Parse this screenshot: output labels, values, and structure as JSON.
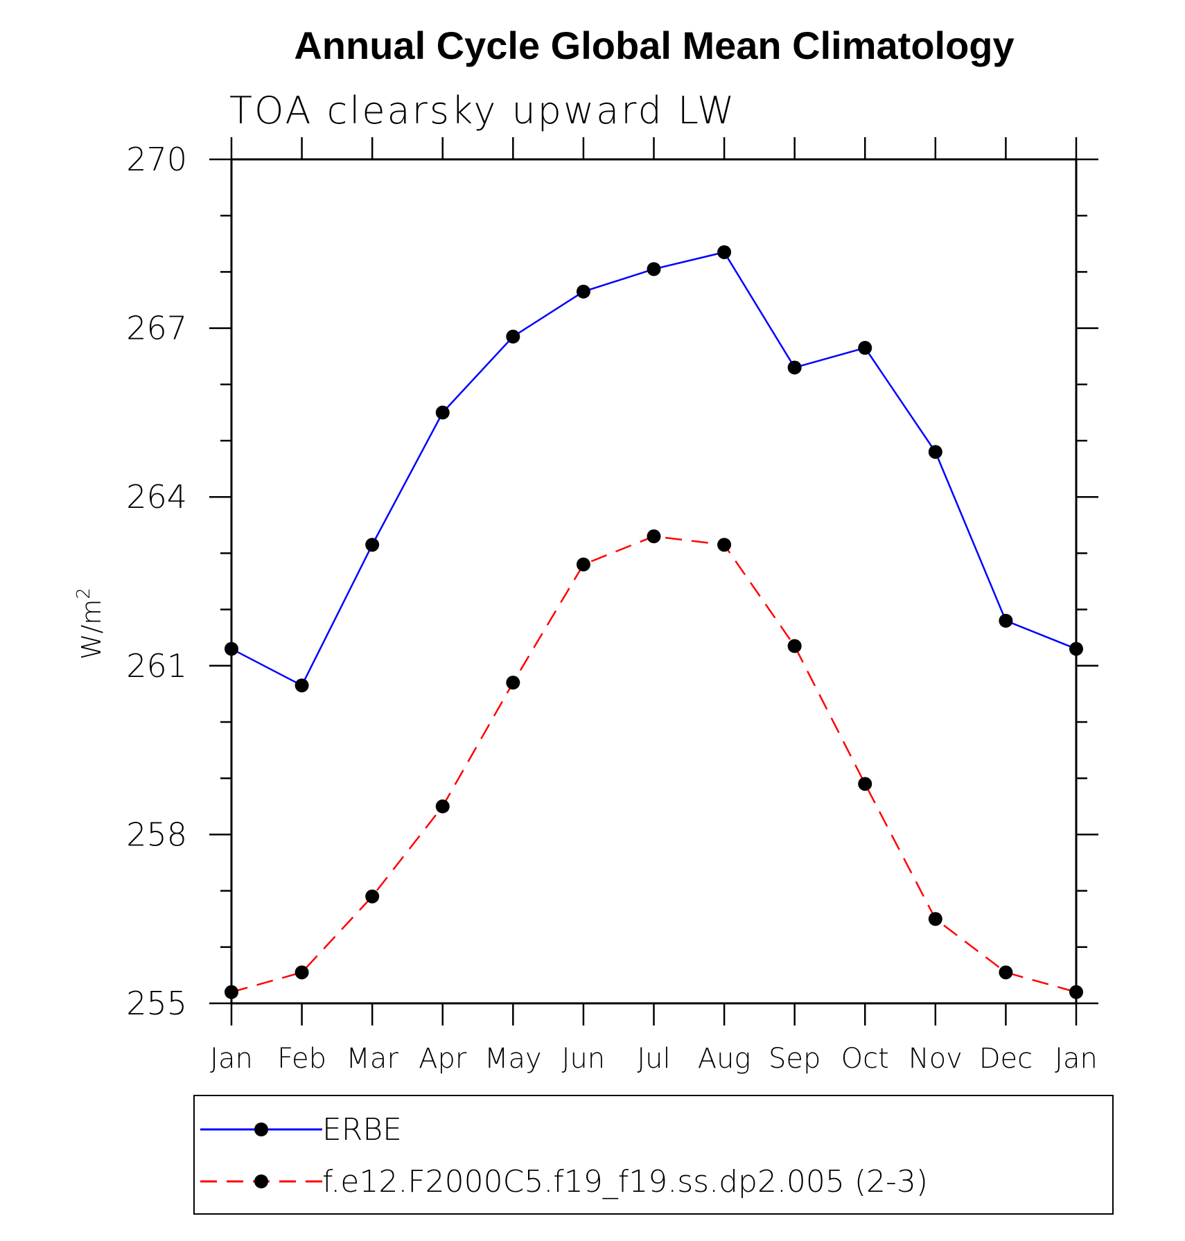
{
  "chart_data": {
    "type": "line",
    "title": "Annual Cycle Global Mean Climatology",
    "subtitle": "TOA clearsky upward LW",
    "ylabel": "W/m",
    "ylabel_superscript": "2",
    "xlabel": "",
    "categories": [
      "Jan",
      "Feb",
      "Mar",
      "Apr",
      "May",
      "Jun",
      "Jul",
      "Aug",
      "Sep",
      "Oct",
      "Nov",
      "Dec",
      "Jan"
    ],
    "ylim": [
      255,
      270
    ],
    "yticks": [
      255,
      258,
      261,
      264,
      267,
      270
    ],
    "grid": false,
    "legend_position": "bottom",
    "series": [
      {
        "name": "ERBE",
        "color": "#0000ff",
        "line_style": "solid",
        "marker": "circle",
        "values": [
          261.3,
          260.65,
          263.15,
          265.5,
          266.85,
          267.65,
          268.05,
          268.35,
          266.3,
          266.65,
          264.8,
          261.8,
          261.3
        ]
      },
      {
        "name": "f.e12.F2000C5.f19_f19.ss.dp2.005 (2-3)",
        "color": "#ff0000",
        "line_style": "dashed",
        "marker": "circle",
        "values": [
          255.2,
          255.55,
          256.9,
          258.5,
          260.7,
          262.8,
          263.3,
          263.15,
          261.35,
          258.9,
          256.5,
          255.55,
          255.2
        ]
      }
    ]
  }
}
